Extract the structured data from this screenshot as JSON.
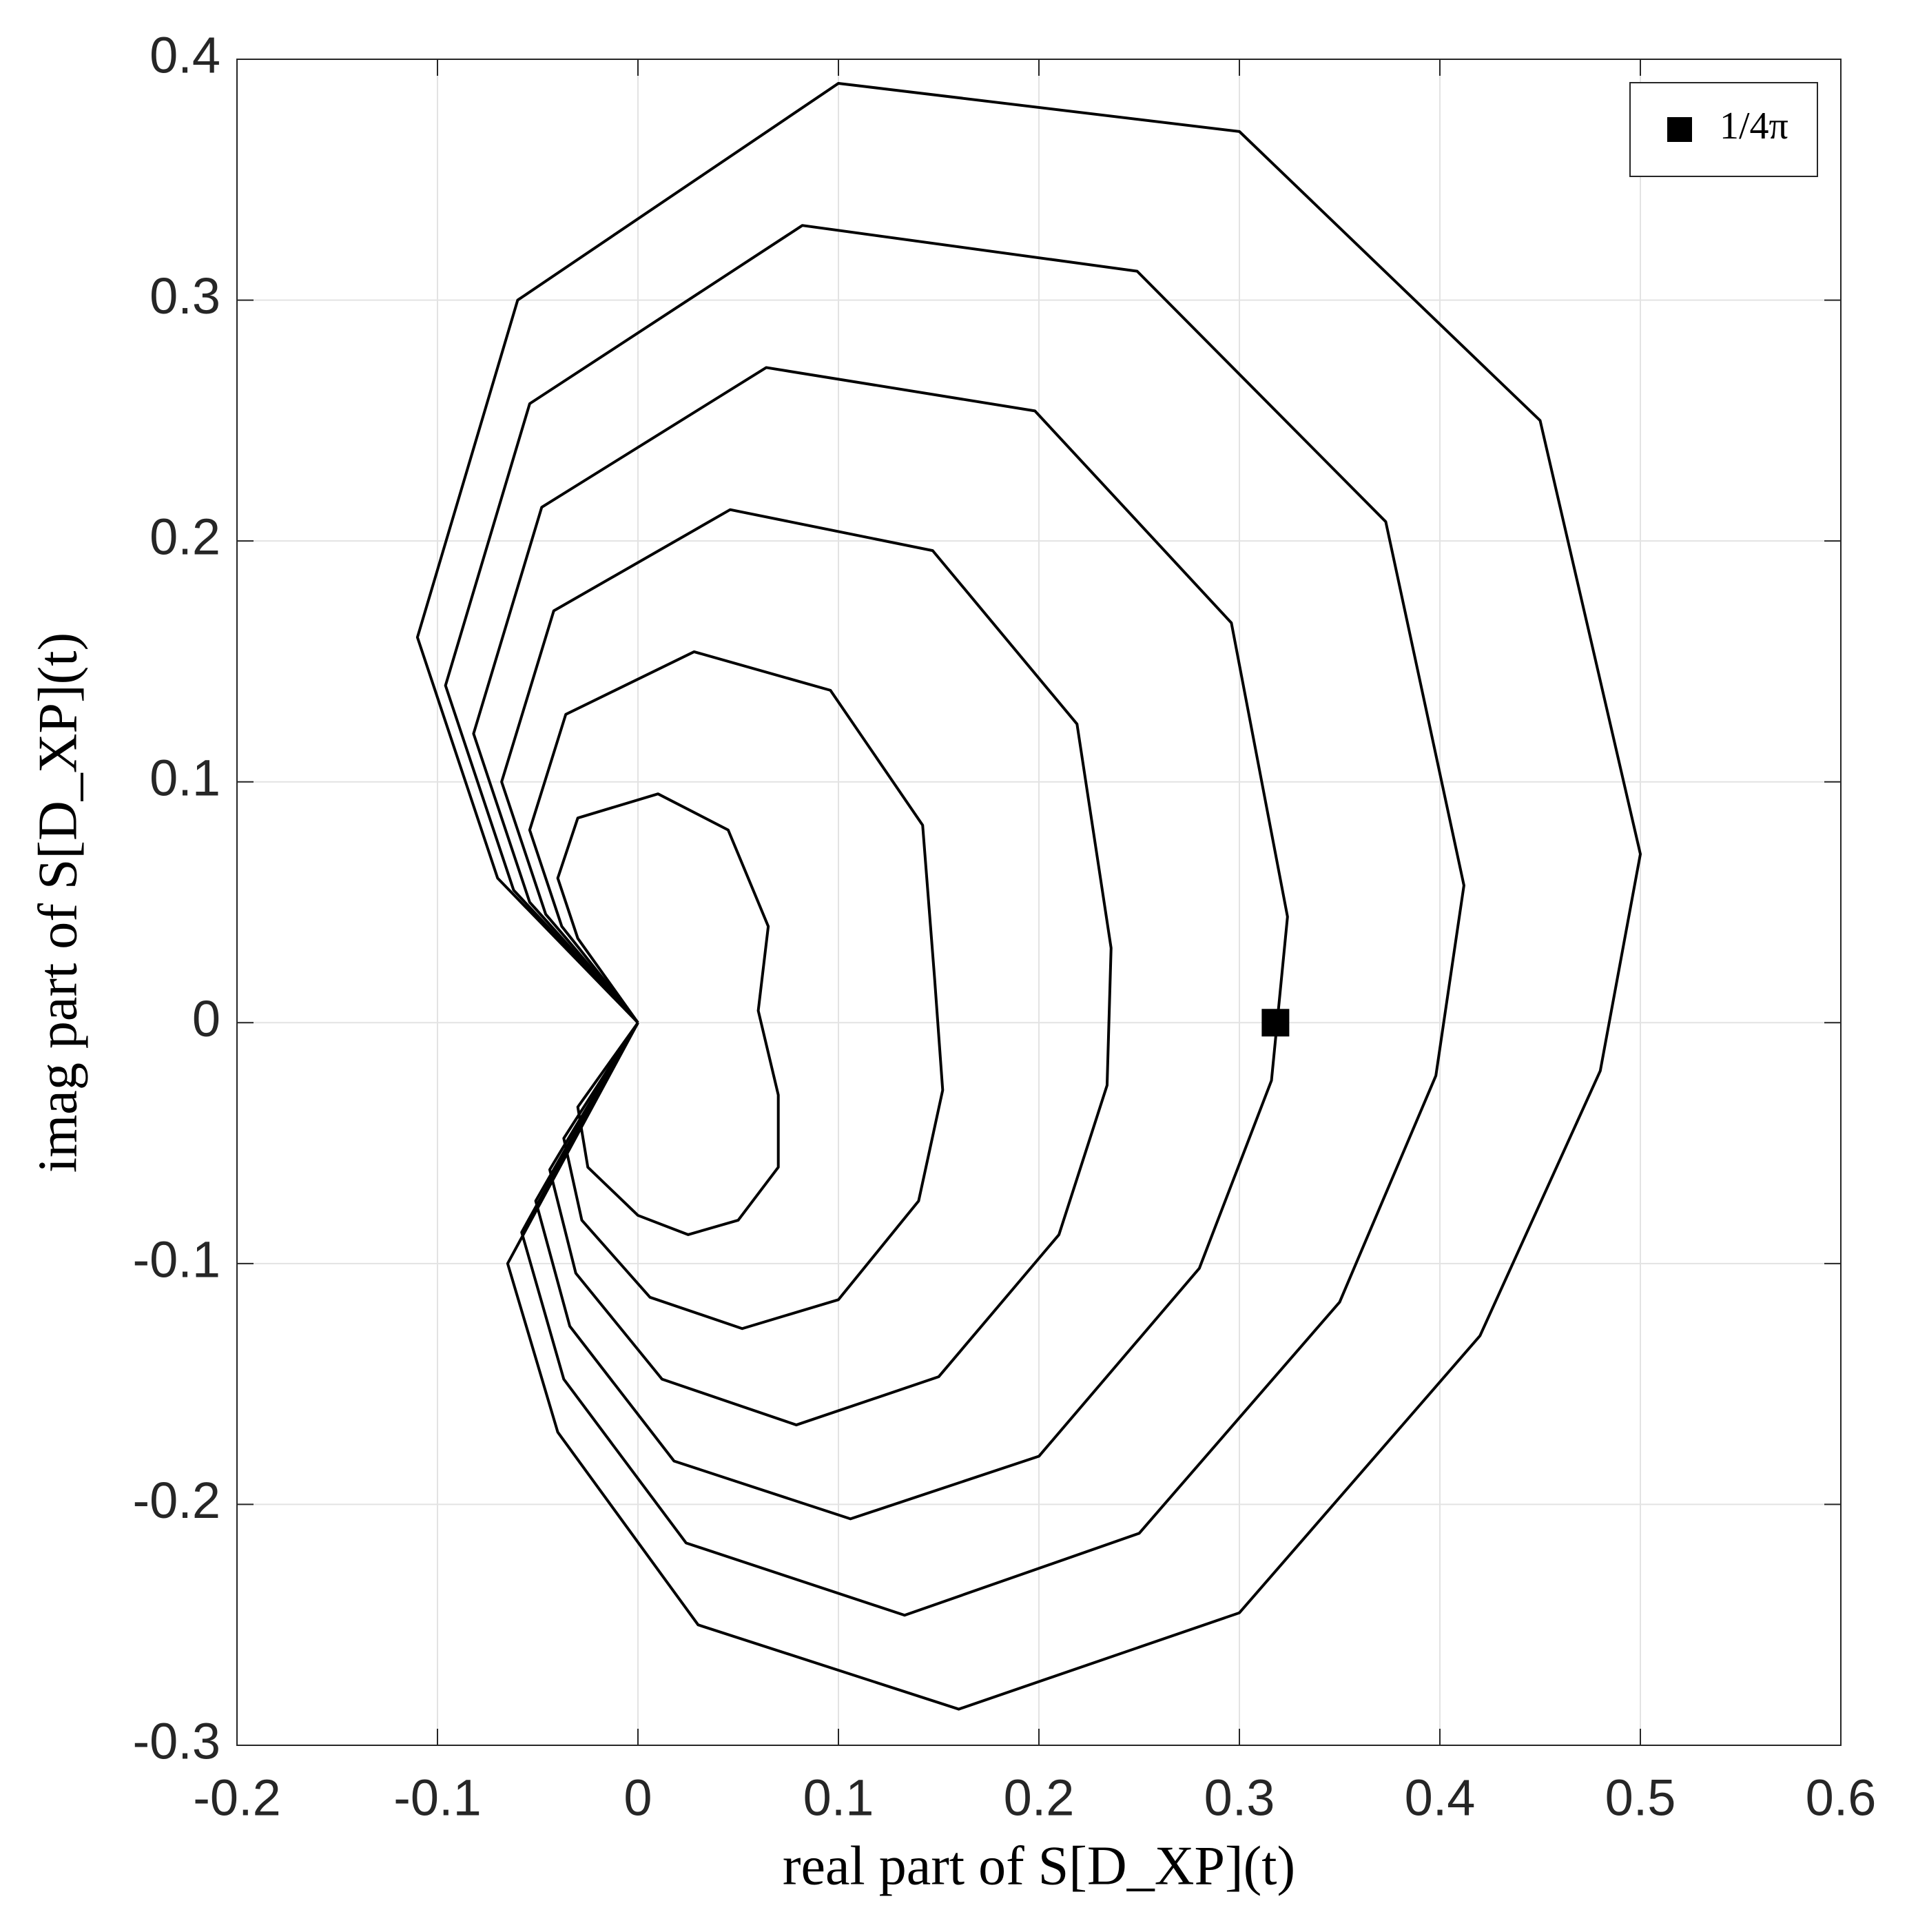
{
  "chart_data": {
    "type": "line",
    "xlabel": "real part of S[D_XP](t)",
    "ylabel": "imag part of S[D_XP](t)",
    "xlim": [
      -0.2,
      0.6
    ],
    "xticks": [
      -0.2,
      -0.1,
      0,
      0.1,
      0.2,
      0.3,
      0.4,
      0.5,
      0.6
    ],
    "ylim": [
      -0.3,
      0.4
    ],
    "yticks": [
      -0.3,
      -0.2,
      -0.1,
      0,
      0.1,
      0.2,
      0.3,
      0.4
    ],
    "grid": true,
    "legend": "upper right",
    "series": [
      {
        "color": "#000000",
        "x": [
          0,
          -0.03,
          -0.04,
          -0.03,
          0.01,
          0.045,
          0.065,
          0.06,
          0.07,
          0.07,
          0.05,
          0.025,
          0,
          -0.025,
          -0.03,
          0
        ],
        "y": [
          0,
          0.035,
          0.06,
          0.085,
          0.095,
          0.08,
          0.04,
          0.005,
          -0.03,
          -0.06,
          -0.082,
          -0.088,
          -0.08,
          -0.06,
          -0.035,
          0
        ]
      },
      {
        "color": "#000000",
        "x": [
          0,
          -0.038,
          -0.054,
          -0.036,
          0.028,
          0.096,
          0.142,
          0.148,
          0.152,
          0.14,
          0.1,
          0.052,
          0.006,
          -0.028,
          -0.037,
          0
        ],
        "y": [
          0,
          0.04,
          0.08,
          0.128,
          0.154,
          0.138,
          0.082,
          0.018,
          -0.028,
          -0.074,
          -0.115,
          -0.127,
          -0.114,
          -0.082,
          -0.048,
          0
        ]
      },
      {
        "color": "#000000",
        "x": [
          0,
          -0.046,
          -0.068,
          -0.042,
          0.046,
          0.147,
          0.219,
          0.236,
          0.234,
          0.21,
          0.15,
          0.079,
          0.012,
          -0.031,
          -0.044,
          0
        ],
        "y": [
          0,
          0.045,
          0.1,
          0.171,
          0.213,
          0.196,
          0.124,
          0.031,
          -0.026,
          -0.088,
          -0.147,
          -0.167,
          -0.148,
          -0.104,
          -0.061,
          0
        ]
      },
      {
        "color": "#000000",
        "x": [
          0,
          -0.054,
          -0.082,
          -0.048,
          0.064,
          0.198,
          0.296,
          0.324,
          0.316,
          0.28,
          0.2,
          0.106,
          0.018,
          -0.034,
          -0.051,
          0
        ],
        "y": [
          0,
          0.05,
          0.12,
          0.214,
          0.272,
          0.254,
          0.166,
          0.044,
          -0.024,
          -0.102,
          -0.18,
          -0.206,
          -0.182,
          -0.126,
          -0.074,
          0
        ]
      },
      {
        "color": "#000000",
        "x": [
          0,
          -0.062,
          -0.096,
          -0.054,
          0.082,
          0.249,
          0.373,
          0.412,
          0.398,
          0.35,
          0.25,
          0.133,
          0.024,
          -0.037,
          -0.058,
          0
        ],
        "y": [
          0,
          0.055,
          0.14,
          0.257,
          0.331,
          0.312,
          0.208,
          0.057,
          -0.022,
          -0.116,
          -0.212,
          -0.246,
          -0.216,
          -0.148,
          -0.087,
          0
        ]
      },
      {
        "color": "#000000",
        "x": [
          0,
          -0.07,
          -0.11,
          -0.06,
          0.1,
          0.3,
          0.45,
          0.5,
          0.48,
          0.42,
          0.3,
          0.16,
          0.03,
          -0.04,
          -0.065,
          0
        ],
        "y": [
          0,
          0.06,
          0.16,
          0.3,
          0.39,
          0.37,
          0.25,
          0.07,
          -0.02,
          -0.13,
          -0.245,
          -0.285,
          -0.25,
          -0.17,
          -0.1,
          0
        ]
      }
    ],
    "markers": [
      {
        "name": "1/4π",
        "color": "#000000",
        "x": [
          0.318
        ],
        "y": [
          0
        ]
      }
    ]
  }
}
